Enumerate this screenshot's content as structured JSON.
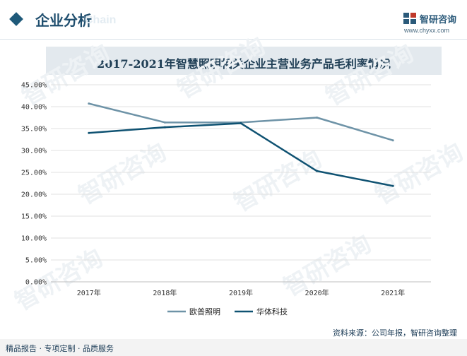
{
  "header": {
    "section_title": "企业分析",
    "watermark_text": "Chain",
    "brand_name": "智研咨询",
    "brand_url": "www.chyxx.com"
  },
  "chart_data": {
    "type": "line",
    "title": "2017-2021年智慧照明相关企业主营业务产品毛利率情况",
    "categories": [
      "2017年",
      "2018年",
      "2019年",
      "2020年",
      "2021年"
    ],
    "y_ticks": [
      "0.00%",
      "5.00%",
      "10.00%",
      "15.00%",
      "20.00%",
      "25.00%",
      "30.00%",
      "35.00%",
      "40.00%",
      "45.00%"
    ],
    "ylim": [
      0,
      45
    ],
    "grid": true,
    "legend_position": "bottom",
    "series": [
      {
        "name": "欧普照明",
        "values": [
          40.7,
          36.4,
          36.4,
          37.5,
          32.3
        ],
        "color": "#6e93a7"
      },
      {
        "name": "华体科技",
        "values": [
          34.0,
          35.3,
          36.2,
          25.3,
          21.9
        ],
        "color": "#0f5272"
      }
    ]
  },
  "watermark": {
    "brand": "智研咨询"
  },
  "footer": {
    "left_text": "精品报告 · 专项定制 · 品质服务",
    "source_text": "资料来源：公司年报，智研咨询整理"
  }
}
